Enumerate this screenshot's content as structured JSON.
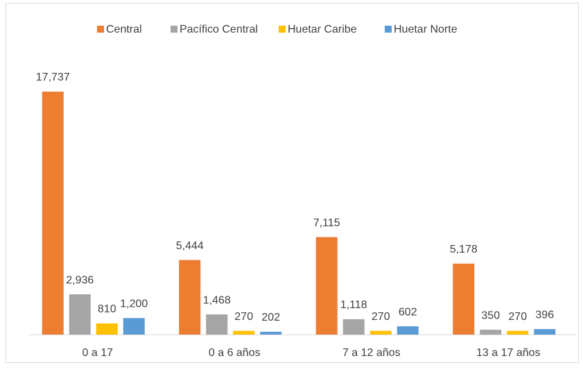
{
  "chart_data": {
    "type": "bar",
    "categories": [
      "0 a 17",
      "0 a 6 años",
      "7 a 12 años",
      "13 a 17 años"
    ],
    "series": [
      {
        "name": "Central",
        "color": "#ed7d31",
        "values": [
          17737,
          5444,
          7115,
          5178
        ],
        "value_labels": [
          "17,737",
          "5,444",
          "7,115",
          "5,178"
        ]
      },
      {
        "name": "Pacífico Central",
        "color": "#a5a5a5",
        "values": [
          2936,
          1468,
          1118,
          350
        ],
        "value_labels": [
          "2,936",
          "1,468",
          "1,118",
          "350"
        ]
      },
      {
        "name": "Huetar Caribe",
        "color": "#ffc000",
        "values": [
          810,
          270,
          270,
          270
        ],
        "value_labels": [
          "810",
          "270",
          "270",
          "270"
        ]
      },
      {
        "name": "Huetar Norte",
        "color": "#5b9bd5",
        "values": [
          1200,
          202,
          602,
          396
        ],
        "value_labels": [
          "1,200",
          "202",
          "602",
          "396"
        ]
      }
    ],
    "legend": "top"
  }
}
